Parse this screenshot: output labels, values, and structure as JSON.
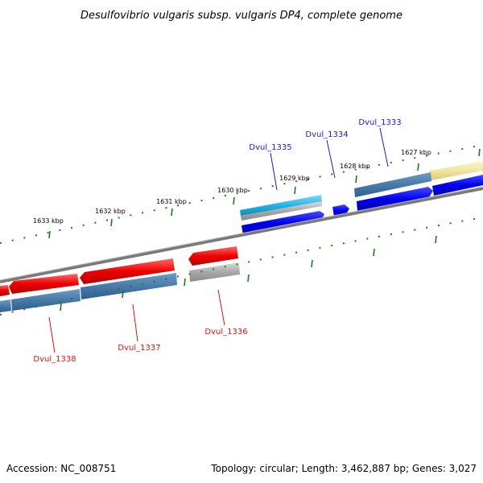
{
  "title": "Desulfovibrio vulgaris subsp. vulgaris DP4, complete genome",
  "footer": {
    "accession": "Accession: NC_008751",
    "topology": "Topology: circular; Length: 3,462,887 bp; Genes: 3,027"
  },
  "scale_labels": [
    "1633 kbp",
    "1632 kbp",
    "1631 kbp",
    "1630 kbp",
    "1629 kbp",
    "1628 kbp",
    "1627 kbp"
  ],
  "genes_forward": [
    "Dvul_1335",
    "Dvul_1334",
    "Dvul_1333"
  ],
  "genes_reverse": [
    "Dvul_1338",
    "Dvul_1337",
    "Dvul_1336"
  ],
  "colors": {
    "backbone": "#7a7a7a",
    "forward_cds": "#0000ee",
    "reverse_cds": "#ee0000",
    "gene_track": "#4a7aa8",
    "rna_feature": "#22b4e6",
    "pseudo_feature": "#a8a8a8",
    "highlight": "#f2e6a0",
    "ticks": "#1f7a1f"
  }
}
